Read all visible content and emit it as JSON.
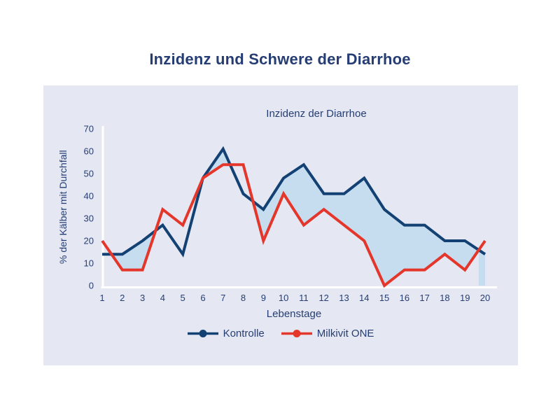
{
  "page": {
    "title": "Inzidenz und Schwere der Diarrhoe"
  },
  "chart_data": {
    "type": "line",
    "title": "Inzidenz der Diarrhoe",
    "xlabel": "Lebenstage",
    "ylabel": "% der Kälber mit Durchfall",
    "x": [
      1,
      2,
      3,
      4,
      5,
      6,
      7,
      8,
      9,
      10,
      11,
      12,
      13,
      14,
      15,
      16,
      17,
      18,
      19,
      20
    ],
    "series": [
      {
        "name": "Kontrolle",
        "color": "#134174",
        "values": [
          14,
          14,
          20,
          27,
          14,
          48,
          61,
          41,
          34,
          48,
          54,
          41,
          41,
          48,
          34,
          27,
          27,
          20,
          20,
          14
        ]
      },
      {
        "name": "Milkivit ONE",
        "color": "#e5362b",
        "values": [
          20,
          7,
          7,
          34,
          27,
          48,
          54,
          54,
          20,
          41,
          27,
          34,
          27,
          20,
          0,
          7,
          7,
          14,
          7,
          20
        ]
      }
    ],
    "fill_between": {
      "color": "#c5ddef",
      "rule": "shaded area between the curves where Kontrolle > Milkivit ONE",
      "tail_drop_to_zero": true
    },
    "ylim": [
      0,
      70
    ],
    "yticks": [
      0,
      10,
      20,
      30,
      40,
      50,
      60,
      70
    ],
    "grid": false,
    "legend_position": "bottom"
  },
  "colors": {
    "page_bg": "#ffffff",
    "panel_bg": "#e5e8f2",
    "text": "#253d72",
    "axis_line": "#ffffff"
  }
}
